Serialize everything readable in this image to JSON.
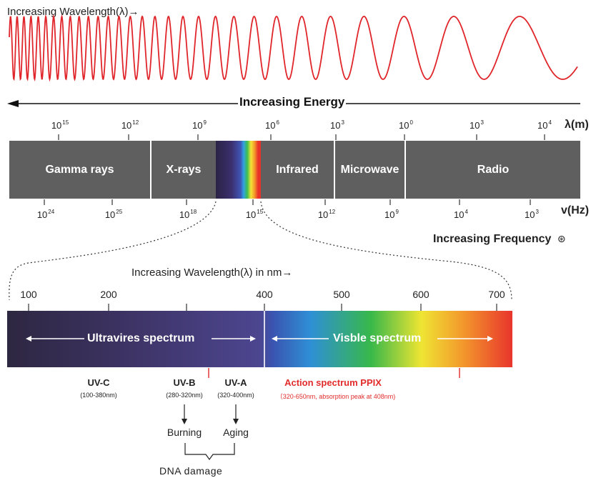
{
  "top_title": "Increasing Wavelength(λ)→",
  "energy_label": "Increasing Energy",
  "wavelength_unit": "λ(m)",
  "frequency_unit": "v(Hz)",
  "frequency_title": "Increasing Frequency",
  "frequency_symbol": "⊛",
  "wavelength_ticks": [
    {
      "base": "10",
      "exp": "15"
    },
    {
      "base": "10",
      "exp": "12"
    },
    {
      "base": "10",
      "exp": "9"
    },
    {
      "base": "10",
      "exp": "6"
    },
    {
      "base": "10",
      "exp": "3"
    },
    {
      "base": "10",
      "exp": "0"
    },
    {
      "base": "10",
      "exp": "3"
    },
    {
      "base": "10",
      "exp": "4"
    }
  ],
  "frequency_ticks": [
    {
      "base": "10",
      "exp": "24"
    },
    {
      "base": "10",
      "exp": "25"
    },
    {
      "base": "10",
      "exp": "18"
    },
    {
      "base": "10",
      "exp": "15"
    },
    {
      "base": "10",
      "exp": "12"
    },
    {
      "base": "10",
      "exp": "9"
    },
    {
      "base": "10",
      "exp": "4"
    },
    {
      "base": "10",
      "exp": "3"
    }
  ],
  "bands": [
    "Gamma rays",
    "X-rays",
    "Infrared",
    "Microwave",
    "Radio"
  ],
  "nm_title": "Increasing Wavelength(λ) in nm→",
  "nm_ticks": [
    "100",
    "200",
    "400",
    "500",
    "600",
    "700"
  ],
  "uv_spectrum_label": "Ultravires spectrum",
  "visible_spectrum_label": "Visble spectrum",
  "uv_c": {
    "name": "UV-C",
    "range": "(100-380nm)"
  },
  "uv_b": {
    "name": "UV-B",
    "range": "(280-320nm)"
  },
  "uv_a": {
    "name": "UV-A",
    "range": "(320-400nm)"
  },
  "action": {
    "name": "Action spectrum PPIX",
    "range": "（320-650nm, absorption peak at 408nm)"
  },
  "effects": {
    "burning": "Burning",
    "aging": "Aging",
    "dna": "DNA damage"
  },
  "colors": {
    "wave": "#e0262b",
    "band": "#5f5f5f",
    "action": "#e22b2b"
  }
}
